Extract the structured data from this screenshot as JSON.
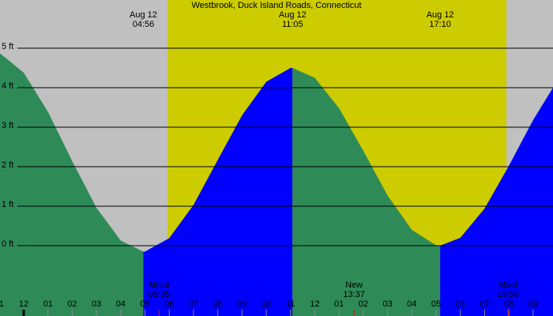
{
  "chart_data": {
    "type": "area",
    "title": "Westbrook, Duck Island Roads, Connecticut",
    "xlim": [
      -0.977,
      21.82
    ],
    "ylim": [
      -1.78,
      6.22
    ],
    "yticks": [
      {
        "value": 0,
        "label": "0 ft"
      },
      {
        "value": 1,
        "label": "1 ft"
      },
      {
        "value": 2,
        "label": "2 ft"
      },
      {
        "value": 3,
        "label": "3 ft"
      },
      {
        "value": 4,
        "label": "4 ft"
      },
      {
        "value": 5,
        "label": "5 ft"
      }
    ],
    "xticks": [
      {
        "value": -1,
        "label": "11"
      },
      {
        "value": 0,
        "label": "12"
      },
      {
        "value": 1,
        "label": "01"
      },
      {
        "value": 2,
        "label": "02"
      },
      {
        "value": 3,
        "label": "03"
      },
      {
        "value": 4,
        "label": "04"
      },
      {
        "value": 5,
        "label": "05"
      },
      {
        "value": 6,
        "label": "06"
      },
      {
        "value": 7,
        "label": "07"
      },
      {
        "value": 8,
        "label": "08"
      },
      {
        "value": 9,
        "label": "09"
      },
      {
        "value": 10,
        "label": "10"
      },
      {
        "value": 11,
        "label": "11"
      },
      {
        "value": 12,
        "label": "12"
      },
      {
        "value": 13,
        "label": "01"
      },
      {
        "value": 14,
        "label": "02"
      },
      {
        "value": 15,
        "label": "03"
      },
      {
        "value": 16,
        "label": "04"
      },
      {
        "value": 17,
        "label": "05"
      },
      {
        "value": 18,
        "label": "06"
      },
      {
        "value": 19,
        "label": "07"
      },
      {
        "value": 20,
        "label": "08"
      },
      {
        "value": 21,
        "label": "09"
      }
    ],
    "grid": true,
    "background": "#c0c0c0",
    "daylight_color": "#cccc00",
    "daylight": [
      5.93,
      19.9
    ],
    "series": [
      {
        "color": "#2e8b57",
        "x": [
          -0.977,
          0,
          1,
          2,
          3,
          4,
          4.933
        ],
        "values": [
          4.87,
          4.38,
          3.39,
          2.14,
          0.96,
          0.13,
          -0.15
        ]
      },
      {
        "color": "#0000ff",
        "x": [
          4.933,
          5,
          6,
          7,
          8,
          9,
          10,
          11,
          11.083
        ],
        "values": [
          -0.15,
          -0.15,
          0.19,
          1.03,
          2.17,
          3.3,
          4.15,
          4.5,
          4.5
        ]
      },
      {
        "color": "#2e8b57",
        "x": [
          11.083,
          12,
          13,
          14,
          15,
          16,
          17,
          17.167
        ],
        "values": [
          4.5,
          4.25,
          3.48,
          2.4,
          1.27,
          0.4,
          0.01,
          0
        ]
      },
      {
        "color": "#0000ff",
        "x": [
          17.167,
          18,
          19,
          20,
          21,
          21.82
        ],
        "values": [
          0,
          0.2,
          0.94,
          2.02,
          3.18,
          4.0
        ]
      }
    ],
    "tide_events": [
      {
        "x": 4.933,
        "date": "Aug 12",
        "time": "04:56"
      },
      {
        "x": 11.083,
        "date": "Aug 12",
        "time": "11:05"
      },
      {
        "x": 17.167,
        "date": "Aug 12",
        "time": "17:10"
      }
    ],
    "moon_events": [
      {
        "x": 5.583,
        "label": "Mrise",
        "time": "05:35"
      },
      {
        "x": 13.617,
        "label": "New",
        "time": "13:37"
      },
      {
        "x": 19.967,
        "label": "Mset",
        "time": "19:58"
      }
    ]
  }
}
